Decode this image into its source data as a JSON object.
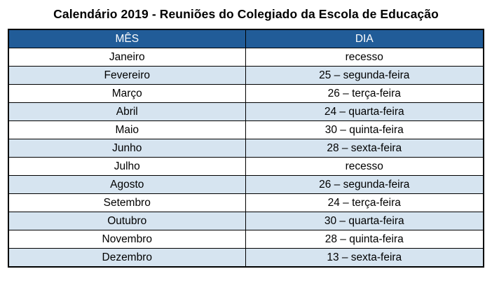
{
  "title": "Calendário 2019 - Reuniões do Colegiado da Escola de Educação",
  "colors": {
    "header_bg": "#215C98",
    "header_text": "#FFFFFF",
    "alt_row_bg": "#D6E4F0",
    "border": "#000000"
  },
  "table": {
    "headers": [
      "MÊS",
      "DIA"
    ],
    "rows": [
      {
        "mes": "Janeiro",
        "dia": "recesso"
      },
      {
        "mes": "Fevereiro",
        "dia": "25 – segunda-feira"
      },
      {
        "mes": "Março",
        "dia": "26 – terça-feira"
      },
      {
        "mes": "Abril",
        "dia": "24 – quarta-feira"
      },
      {
        "mes": "Maio",
        "dia": "30 – quinta-feira"
      },
      {
        "mes": "Junho",
        "dia": "28 – sexta-feira"
      },
      {
        "mes": "Julho",
        "dia": "recesso"
      },
      {
        "mes": "Agosto",
        "dia": "26 – segunda-feira"
      },
      {
        "mes": "Setembro",
        "dia": "24 – terça-feira"
      },
      {
        "mes": "Outubro",
        "dia": "30 – quarta-feira"
      },
      {
        "mes": "Novembro",
        "dia": "28 – quinta-feira"
      },
      {
        "mes": "Dezembro",
        "dia": "13 – sexta-feira"
      }
    ]
  }
}
